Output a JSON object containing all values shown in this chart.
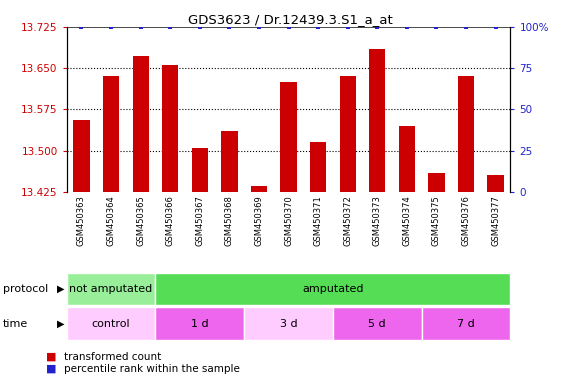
{
  "title": "GDS3623 / Dr.12439.3.S1_a_at",
  "samples": [
    "GSM450363",
    "GSM450364",
    "GSM450365",
    "GSM450366",
    "GSM450367",
    "GSM450368",
    "GSM450369",
    "GSM450370",
    "GSM450371",
    "GSM450372",
    "GSM450373",
    "GSM450374",
    "GSM450375",
    "GSM450376",
    "GSM450377"
  ],
  "bar_values": [
    13.555,
    13.635,
    13.672,
    13.655,
    13.505,
    13.535,
    13.435,
    13.625,
    13.515,
    13.635,
    13.685,
    13.545,
    13.46,
    13.635,
    13.455
  ],
  "percentile_values": [
    100,
    100,
    100,
    100,
    100,
    100,
    100,
    100,
    100,
    100,
    100,
    100,
    100,
    100,
    100
  ],
  "bar_color": "#cc0000",
  "percentile_color": "#2222cc",
  "ylim_left": [
    13.425,
    13.725
  ],
  "ylim_right": [
    0,
    100
  ],
  "yticks_left": [
    13.425,
    13.5,
    13.575,
    13.65,
    13.725
  ],
  "yticks_right": [
    0,
    25,
    50,
    75,
    100
  ],
  "ytick_right_labels": [
    "0",
    "25",
    "50",
    "75",
    "100%"
  ],
  "grid_values": [
    13.5,
    13.575,
    13.65
  ],
  "protocol_groups": [
    {
      "label": "not amputated",
      "start": 0,
      "end": 3,
      "color": "#99ee99"
    },
    {
      "label": "amputated",
      "start": 3,
      "end": 15,
      "color": "#55dd55"
    }
  ],
  "time_groups": [
    {
      "label": "control",
      "start": 0,
      "end": 3,
      "color": "#ffccff"
    },
    {
      "label": "1 d",
      "start": 3,
      "end": 6,
      "color": "#ee66ee"
    },
    {
      "label": "3 d",
      "start": 6,
      "end": 9,
      "color": "#ffccff"
    },
    {
      "label": "5 d",
      "start": 9,
      "end": 12,
      "color": "#ee66ee"
    },
    {
      "label": "7 d",
      "start": 12,
      "end": 15,
      "color": "#ee66ee"
    }
  ],
  "legend_items": [
    {
      "label": "transformed count",
      "color": "#cc0000"
    },
    {
      "label": "percentile rank within the sample",
      "color": "#2222cc"
    }
  ],
  "xtick_bg_color": "#cccccc",
  "plot_bg_color": "#ffffff",
  "bar_width": 0.55
}
